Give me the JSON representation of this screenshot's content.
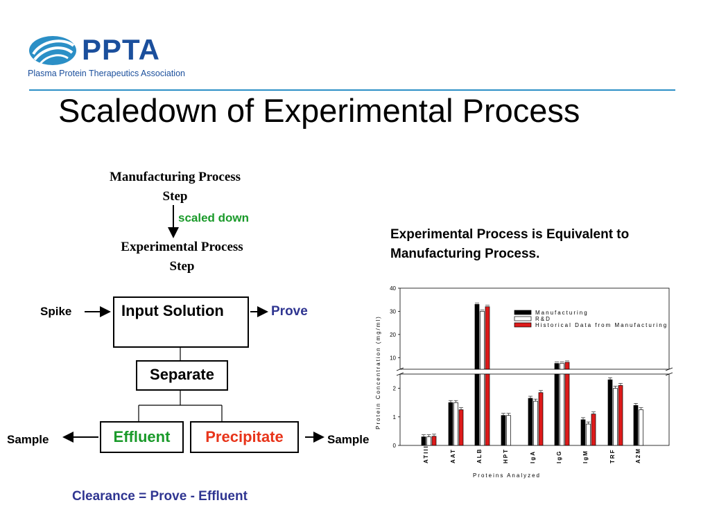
{
  "logo": {
    "name": "PPTA",
    "subtitle": "Plasma Protein Therapeutics Association",
    "color": "#1b4f9c",
    "accent": "#2b8fc6"
  },
  "title": "Scaledown of Experimental Process",
  "diagram": {
    "manufacturing_step": [
      "Manufacturing Process",
      "Step"
    ],
    "scaled_down": "scaled down",
    "experimental_step": [
      "Experimental Process",
      "Step"
    ],
    "spike": "Spike",
    "input_solution": "Input Solution",
    "prove": "Prove",
    "separate": "Separate",
    "effluent": "Effluent",
    "precipitate": "Precipitate",
    "sample_left": "Sample",
    "sample_right": "Sample",
    "clearance": "Clearance = Prove - Effluent",
    "colors": {
      "green": "#1a9a2a",
      "red": "#e8341a",
      "blue": "#2f3591"
    }
  },
  "equivalence_note": "Experimental Process is Equivalent to Manufacturing Process.",
  "chart_data": {
    "type": "bar",
    "xlabel": "Proteins Analyzed",
    "ylabel": "Protein Concentration (mg/ml)",
    "categories": [
      "ATIII",
      "AAT",
      "ALB",
      "HPT",
      "IgA",
      "IgG",
      "IgM",
      "TRF",
      "A2M"
    ],
    "broken_axis": true,
    "lower_range": [
      0,
      2.5
    ],
    "upper_range": [
      5,
      40
    ],
    "lower_ticks": [
      0,
      1,
      2
    ],
    "upper_ticks": [
      10,
      20,
      30,
      40
    ],
    "series": [
      {
        "name": "Manufacturing",
        "color": "#000000",
        "values": [
          0.3,
          1.5,
          33,
          1.05,
          1.65,
          7.5,
          0.9,
          2.3,
          1.4
        ]
      },
      {
        "name": "R&D",
        "color": "#ffffff",
        "values": [
          0.3,
          1.5,
          30,
          1.05,
          1.55,
          7.5,
          0.75,
          2.0,
          1.25
        ]
      },
      {
        "name": "Historical Data from Manufacturing",
        "color": "#dd1a1a",
        "values": [
          0.32,
          1.25,
          32,
          null,
          1.85,
          8.0,
          1.1,
          2.1,
          null
        ]
      }
    ],
    "legend": "top-right"
  }
}
